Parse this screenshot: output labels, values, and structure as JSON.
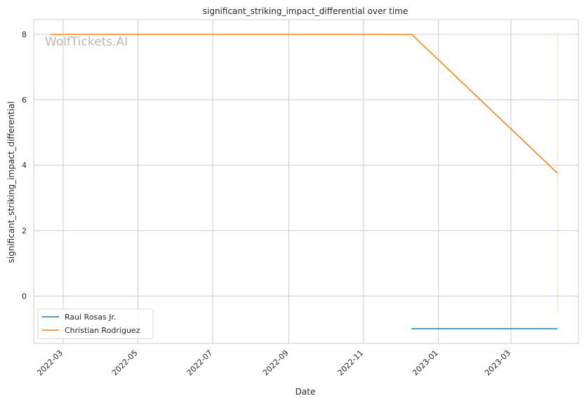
{
  "chart_data": {
    "type": "line",
    "title": "significant_striking_impact_differential over time",
    "xlabel": "Date",
    "ylabel": "significant_striking_impact_differential",
    "watermark": "WolfTickets.AI",
    "x_ticks": [
      "2022-03",
      "2022-05",
      "2022-07",
      "2022-09",
      "2022-11",
      "2023-01",
      "2023-03"
    ],
    "x_range": [
      "2022-02-05",
      "2023-04-25"
    ],
    "y_ticks": [
      0,
      2,
      4,
      6,
      8
    ],
    "ylim": [
      -1.45,
      8.45
    ],
    "grid": true,
    "legend_position": "lower-left",
    "series": [
      {
        "name": "Raul Rosas Jr.",
        "color": "#1f77b4",
        "points": [
          [
            "2022-12-10",
            -1.0
          ],
          [
            "2023-04-08",
            -1.0
          ]
        ]
      },
      {
        "name": "Christian Rodriguez",
        "color": "#ff7f0e",
        "points": [
          [
            "2022-02-19",
            8.0
          ],
          [
            "2022-12-10",
            8.0
          ],
          [
            "2023-04-08",
            3.75
          ]
        ],
        "range_band": {
          "x": "2023-04-08",
          "low": -0.5,
          "high": 8.0
        }
      }
    ]
  }
}
